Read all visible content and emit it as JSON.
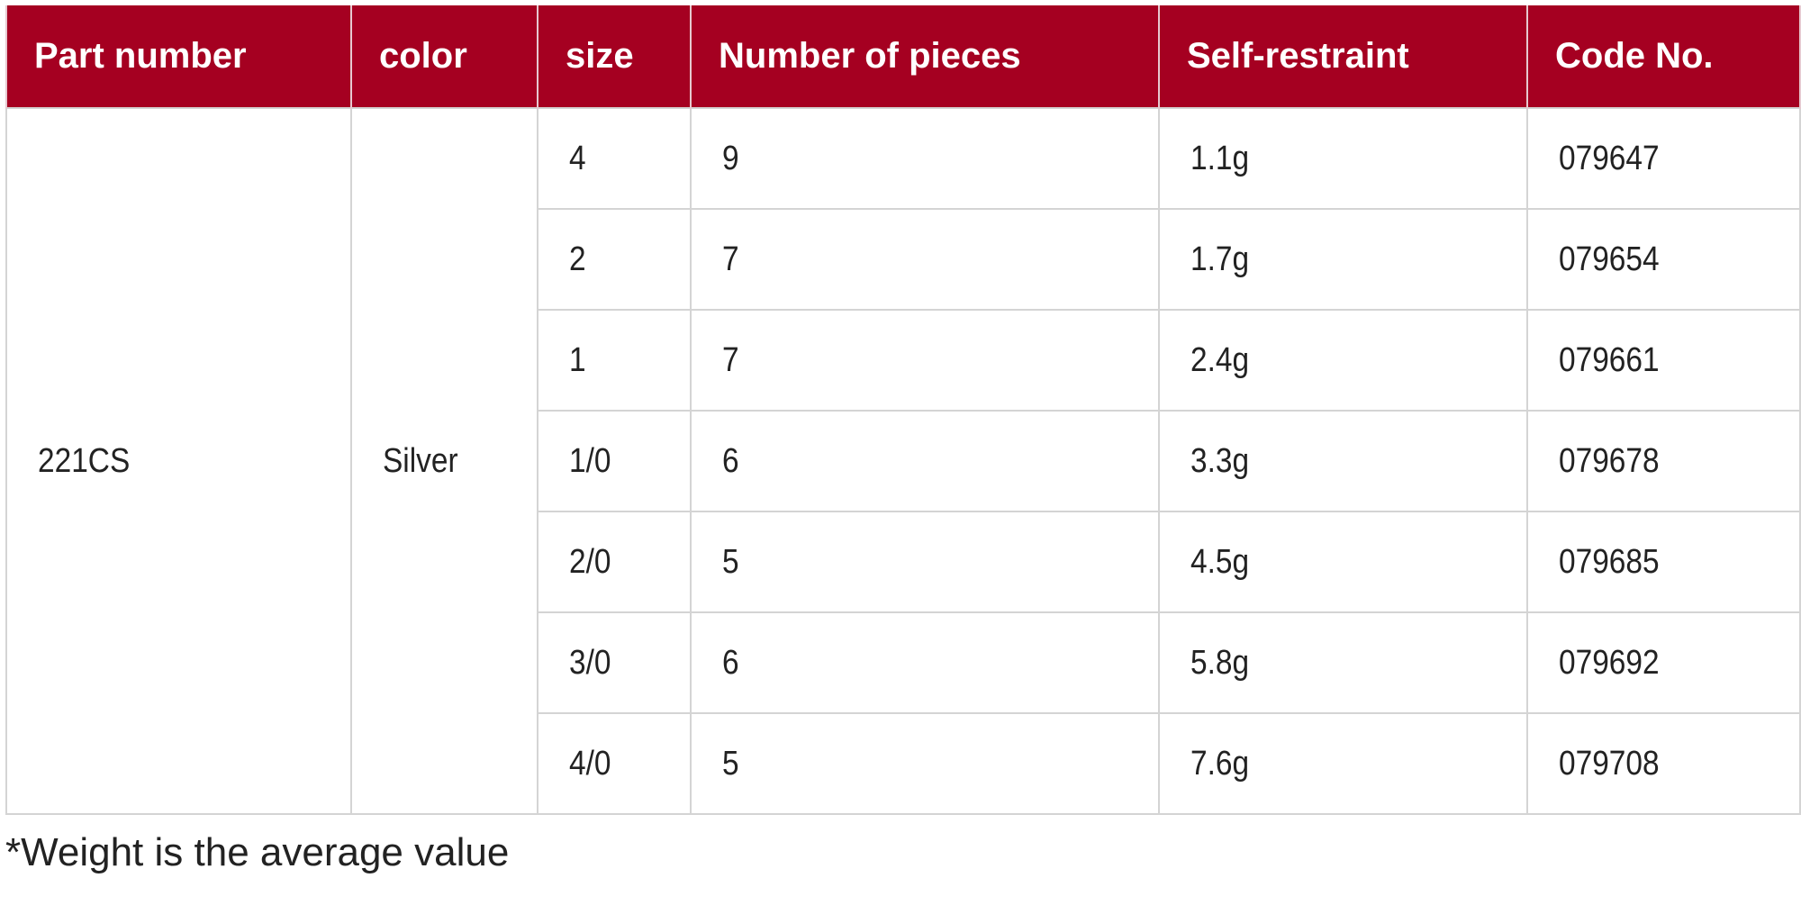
{
  "table": {
    "headers": [
      "Part number",
      "color",
      "size",
      "Number of pieces",
      "Self-restraint",
      "Code No."
    ],
    "part_number": "221CS",
    "color": "Silver",
    "rows": [
      {
        "size": "4",
        "pieces": "9",
        "weight": "1.1g",
        "code": "079647"
      },
      {
        "size": "2",
        "pieces": "7",
        "weight": "1.7g",
        "code": "079654"
      },
      {
        "size": "1",
        "pieces": "7",
        "weight": "2.4g",
        "code": "079661"
      },
      {
        "size": "1/0",
        "pieces": "6",
        "weight": "3.3g",
        "code": "079678"
      },
      {
        "size": "2/0",
        "pieces": "5",
        "weight": "4.5g",
        "code": "079685"
      },
      {
        "size": "3/0",
        "pieces": "6",
        "weight": "5.8g",
        "code": "079692"
      },
      {
        "size": "4/0",
        "pieces": "5",
        "weight": "7.6g",
        "code": "079708"
      }
    ]
  },
  "footnote": "*Weight is the average value",
  "colors": {
    "header_bg": "#a50021",
    "border": "#d4d4d4"
  }
}
